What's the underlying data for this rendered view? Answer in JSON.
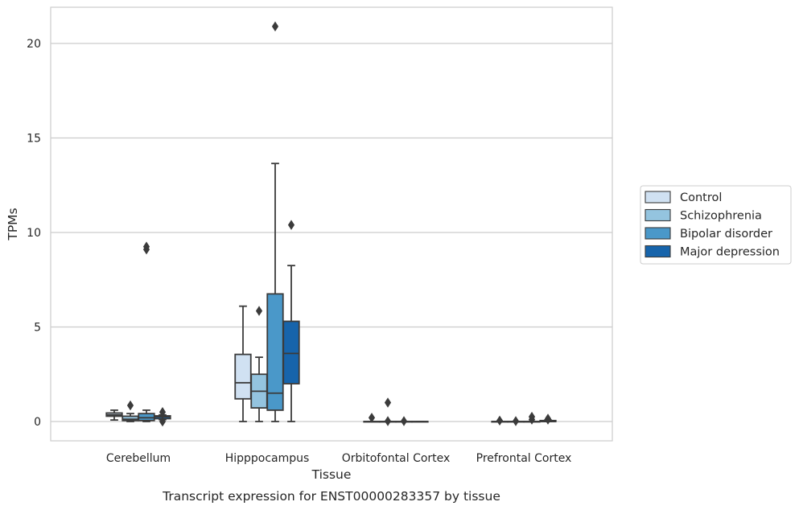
{
  "chart_data": {
    "type": "box",
    "title": "",
    "caption": "Transcript expression for ENST00000283357 by tissue",
    "xlabel": "Tissue",
    "ylabel": "TPMs",
    "ylim": [
      -1,
      22
    ],
    "yticks": [
      0,
      5,
      10,
      15,
      20
    ],
    "grid": "horizontal",
    "legend_placement": "right",
    "categories": [
      "Cerebellum",
      "Hipppocampus",
      "Orbitofontal Cortex",
      "Prefrontal Cortex"
    ],
    "series": [
      {
        "name": "Control",
        "color": "#d0e1f2",
        "boxes": [
          {
            "q1": 0.28,
            "median": 0.35,
            "q3": 0.45,
            "whislo": 0.08,
            "whishi": 0.6,
            "fliers": []
          },
          {
            "q1": 1.2,
            "median": 2.05,
            "q3": 3.55,
            "whislo": 0.0,
            "whishi": 6.1,
            "fliers": []
          },
          {
            "q1": 0.0,
            "median": 0.0,
            "q3": 0.0,
            "whislo": 0.0,
            "whishi": 0.0,
            "fliers": [
              0.2
            ]
          },
          {
            "q1": 0.0,
            "median": 0.0,
            "q3": 0.0,
            "whislo": 0.0,
            "whishi": 0.0,
            "fliers": [
              0.05
            ]
          }
        ]
      },
      {
        "name": "Schizophrenia",
        "color": "#94c4df",
        "boxes": [
          {
            "q1": 0.05,
            "median": 0.12,
            "q3": 0.28,
            "whislo": 0.0,
            "whishi": 0.42,
            "fliers": [
              0.85
            ]
          },
          {
            "q1": 0.72,
            "median": 1.6,
            "q3": 2.5,
            "whislo": 0.0,
            "whishi": 3.4,
            "fliers": [
              5.85
            ]
          },
          {
            "q1": 0.0,
            "median": 0.0,
            "q3": 0.0,
            "whislo": 0.0,
            "whishi": 0.0,
            "fliers": [
              1.0,
              0.02
            ]
          },
          {
            "q1": 0.0,
            "median": 0.0,
            "q3": 0.0,
            "whislo": 0.0,
            "whishi": 0.0,
            "fliers": [
              0.02
            ]
          }
        ]
      },
      {
        "name": "Bipolar disorder",
        "color": "#4a98c9",
        "boxes": [
          {
            "q1": 0.05,
            "median": 0.2,
            "q3": 0.42,
            "whislo": 0.0,
            "whishi": 0.6,
            "fliers": [
              9.1,
              9.25
            ]
          },
          {
            "q1": 0.6,
            "median": 1.5,
            "q3": 6.75,
            "whislo": 0.0,
            "whishi": 13.65,
            "fliers": [
              20.9
            ]
          },
          {
            "q1": 0.0,
            "median": 0.0,
            "q3": 0.0,
            "whislo": 0.0,
            "whishi": 0.0,
            "fliers": [
              0.02
            ]
          },
          {
            "q1": 0.0,
            "median": 0.0,
            "q3": 0.0,
            "whislo": 0.0,
            "whishi": 0.0,
            "fliers": [
              0.1,
              0.25
            ]
          }
        ]
      },
      {
        "name": "Major depression",
        "color": "#1764ab",
        "boxes": [
          {
            "q1": 0.15,
            "median": 0.25,
            "q3": 0.3,
            "whislo": 0.1,
            "whishi": 0.35,
            "fliers": [
              0.5,
              0.0
            ]
          },
          {
            "q1": 2.0,
            "median": 3.6,
            "q3": 5.3,
            "whislo": 0.0,
            "whishi": 8.25,
            "fliers": [
              10.4
            ]
          },
          {
            "q1": 0.0,
            "median": 0.0,
            "q3": 0.0,
            "whislo": 0.0,
            "whishi": 0.0,
            "fliers": []
          },
          {
            "q1": 0.0,
            "median": 0.0,
            "q3": 0.05,
            "whislo": 0.0,
            "whishi": 0.08,
            "fliers": [
              0.1,
              0.15
            ]
          }
        ]
      }
    ]
  }
}
